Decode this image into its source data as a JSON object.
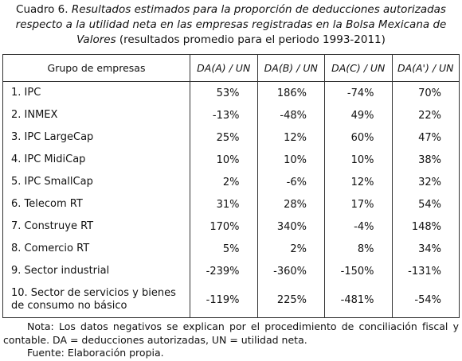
{
  "caption": {
    "label": "Cuadro 6.",
    "title": "Resultados estimados para la proporción de deducciones autorizadas respecto a la utilidad neta en las empresas registradas en la Bolsa Mexicana de Valores",
    "period": "(resultados promedio para el periodo 1993-2011)"
  },
  "table": {
    "headers": [
      "Grupo de empresas",
      "DA(A) / UN",
      "DA(B) / UN",
      "DA(C) / UN",
      "DA(A') / UN"
    ],
    "rows": [
      [
        "1. IPC",
        "53%",
        "186%",
        "-74%",
        "70%"
      ],
      [
        "2. INMEX",
        "-13%",
        "-48%",
        "49%",
        "22%"
      ],
      [
        "3. IPC LargeCap",
        "25%",
        "12%",
        "60%",
        "47%"
      ],
      [
        "4. IPC MidiCap",
        "10%",
        "10%",
        "10%",
        "38%"
      ],
      [
        "5. IPC SmallCap",
        "2%",
        "-6%",
        "12%",
        "32%"
      ],
      [
        "6. Telecom RT",
        "31%",
        "28%",
        "17%",
        "54%"
      ],
      [
        "7. Construye RT",
        "170%",
        "340%",
        "-4%",
        "148%"
      ],
      [
        "8. Comercio RT",
        "5%",
        "2%",
        "8%",
        "34%"
      ],
      [
        "9. Sector industrial",
        "-239%",
        "-360%",
        "-150%",
        "-131%"
      ],
      [
        "10. Sector de servicios y bienes de consumo no básico",
        "-119%",
        "225%",
        "-481%",
        "-54%"
      ]
    ]
  },
  "notes": {
    "note": "Nota: Los datos negativos se explican por el procedimiento de conciliación fiscal y contable. DA = deducciones autorizadas, UN = utilidad neta.",
    "source": "Fuente: Elaboración propia."
  }
}
